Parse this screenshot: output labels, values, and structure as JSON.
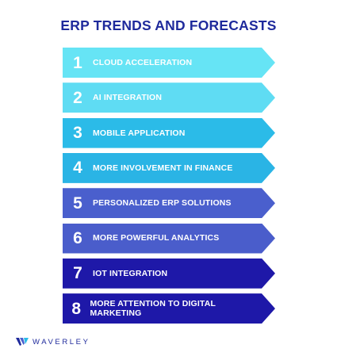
{
  "title": "ERP TRENDS AND FORECASTS",
  "items": [
    {
      "number": "1",
      "label": "CLOUD ACCELERATION",
      "color": "#66e4f5"
    },
    {
      "number": "2",
      "label": "AI INTEGRATION",
      "color": "#5fdcf3"
    },
    {
      "number": "3",
      "label": "MOBILE APPLICATION",
      "color": "#2bbbe8"
    },
    {
      "number": "4",
      "label": "MORE INVOLVEMENT IN FINANCE",
      "color": "#2ab4e5"
    },
    {
      "number": "5",
      "label": "PERSONALIZED ERP SOLUTIONS",
      "color": "#4a5fcd"
    },
    {
      "number": "6",
      "label": "MORE POWERFUL ANALYTICS",
      "color": "#4a5dcb"
    },
    {
      "number": "7",
      "label": "IOT INTEGRATION",
      "color": "#1e18a8"
    },
    {
      "number": "8",
      "label": "MORE ATTENTION TO DIGITAL MARKETING",
      "color": "#1e18a8"
    }
  ],
  "logo": {
    "text": "WAVERLEY",
    "icon": "waverley-logo-icon",
    "color": "#1f2a9c"
  }
}
